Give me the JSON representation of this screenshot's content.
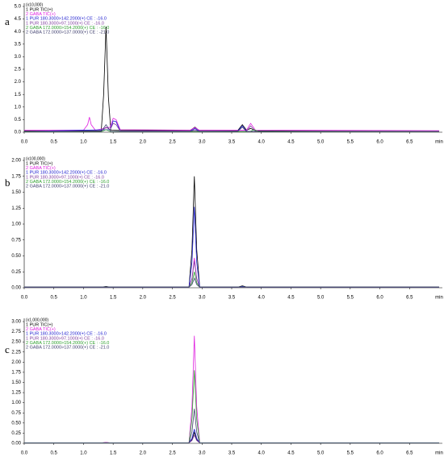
{
  "chart_data": [
    {
      "type": "line",
      "panel_label": "a",
      "scale_label": "(x10,000)",
      "x_label": "min",
      "xlim": [
        0,
        7
      ],
      "ylim": [
        0,
        5
      ],
      "xticks": [
        {
          "value": 0,
          "label": "0.0"
        },
        {
          "value": 0.5,
          "label": "0.5"
        },
        {
          "value": 1,
          "label": "1.0"
        },
        {
          "value": 1.5,
          "label": "1.5"
        },
        {
          "value": 2,
          "label": "2.0"
        },
        {
          "value": 2.5,
          "label": "2.5"
        },
        {
          "value": 3,
          "label": "3.0"
        },
        {
          "value": 3.5,
          "label": "3.5"
        },
        {
          "value": 4,
          "label": "4.0"
        },
        {
          "value": 4.5,
          "label": "4.5"
        },
        {
          "value": 5,
          "label": "5.0"
        },
        {
          "value": 5.5,
          "label": "5.5"
        },
        {
          "value": 6,
          "label": "6.0"
        },
        {
          "value": 6.5,
          "label": "6.5"
        }
      ],
      "yticks": [
        {
          "value": 0,
          "label": "0.0"
        },
        {
          "value": 0.5,
          "label": "0.5"
        },
        {
          "value": 1,
          "label": "1.0"
        },
        {
          "value": 1.5,
          "label": "1.5"
        },
        {
          "value": 2,
          "label": "2.0"
        },
        {
          "value": 2.5,
          "label": "2.5"
        },
        {
          "value": 3,
          "label": "3.0"
        },
        {
          "value": 3.5,
          "label": "3.5"
        },
        {
          "value": 4,
          "label": "4.0"
        },
        {
          "value": 4.5,
          "label": "4.5"
        },
        {
          "value": 5,
          "label": "5.0"
        }
      ],
      "series": [
        {
          "name": "1 PUR TIC(+)",
          "color": "#000000",
          "x": [
            0,
            0.9,
            1.0,
            1.3,
            1.34,
            1.38,
            1.42,
            1.46,
            1.6,
            2.8,
            2.88,
            2.95,
            3.6,
            3.68,
            3.75,
            3.82,
            3.9,
            4.1,
            7
          ],
          "values": [
            0.05,
            0.06,
            0.05,
            0.06,
            1.5,
            4.2,
            1.4,
            0.08,
            0.07,
            0.07,
            0.2,
            0.07,
            0.06,
            0.3,
            0.08,
            0.15,
            0.06,
            0.05,
            0.04
          ]
        },
        {
          "name": "2 GABA TIC(+)",
          "color": "#e020e0",
          "x": [
            0,
            1.0,
            1.07,
            1.1,
            1.13,
            1.2,
            1.45,
            1.5,
            1.55,
            1.62,
            2.8,
            2.88,
            2.95,
            3.75,
            3.82,
            3.9,
            7
          ],
          "values": [
            0.08,
            0.08,
            0.3,
            0.6,
            0.3,
            0.08,
            0.2,
            0.55,
            0.5,
            0.1,
            0.08,
            0.18,
            0.08,
            0.08,
            0.35,
            0.08,
            0.06
          ]
        },
        {
          "name": "1 PUR 180.3000>142.2000(+) CE : -16.0",
          "color": "#2020d0",
          "x": [
            0,
            1.45,
            1.5,
            1.55,
            1.62,
            2.8,
            2.88,
            2.95,
            3.6,
            3.68,
            3.75,
            7
          ],
          "values": [
            0.03,
            0.1,
            0.45,
            0.42,
            0.05,
            0.04,
            0.15,
            0.04,
            0.04,
            0.25,
            0.04,
            0.03
          ]
        },
        {
          "name": "1 PUR 180.3000>97.1000(+) CE : -16.0",
          "color": "#8040a0",
          "x": [
            0,
            1.3,
            1.38,
            1.45,
            1.5,
            1.55,
            1.62,
            3.75,
            3.82,
            3.9,
            7
          ],
          "values": [
            0.04,
            0.04,
            0.2,
            0.1,
            0.35,
            0.3,
            0.05,
            0.04,
            0.25,
            0.04,
            0.03
          ]
        },
        {
          "name": "2 GABA 172.0000>154.2000(+) CE : -16.0",
          "color": "#30a030",
          "x": [
            0,
            1.3,
            1.38,
            1.46,
            3.8,
            3.88,
            3.96,
            7
          ],
          "values": [
            0.02,
            0.02,
            0.1,
            0.02,
            0.02,
            0.1,
            0.02,
            0.02
          ]
        },
        {
          "name": "2 GABA 172.0000>137.0000(+) CE : -21.0",
          "color": "#404070",
          "x": [
            0,
            1.3,
            1.38,
            1.46,
            2.8,
            2.88,
            2.95,
            3.6,
            3.68,
            3.75,
            7
          ],
          "values": [
            0.03,
            0.03,
            0.3,
            0.03,
            0.03,
            0.1,
            0.03,
            0.03,
            0.2,
            0.03,
            0.03
          ]
        }
      ]
    },
    {
      "type": "line",
      "panel_label": "b",
      "scale_label": "(x100,000)",
      "x_label": "min",
      "xlim": [
        0,
        7
      ],
      "ylim": [
        0,
        2
      ],
      "xticks": [
        {
          "value": 0,
          "label": "0.0"
        },
        {
          "value": 0.5,
          "label": "0.5"
        },
        {
          "value": 1,
          "label": "1.0"
        },
        {
          "value": 1.5,
          "label": "1.5"
        },
        {
          "value": 2,
          "label": "2.0"
        },
        {
          "value": 2.5,
          "label": "2.5"
        },
        {
          "value": 3,
          "label": "3.0"
        },
        {
          "value": 3.5,
          "label": "3.5"
        },
        {
          "value": 4,
          "label": "4.0"
        },
        {
          "value": 4.5,
          "label": "4.5"
        },
        {
          "value": 5,
          "label": "5.0"
        },
        {
          "value": 5.5,
          "label": "5.5"
        },
        {
          "value": 6,
          "label": "6.0"
        },
        {
          "value": 6.5,
          "label": "6.5"
        }
      ],
      "yticks": [
        {
          "value": 0,
          "label": "0.00"
        },
        {
          "value": 0.25,
          "label": "0.25"
        },
        {
          "value": 0.5,
          "label": "0.50"
        },
        {
          "value": 0.75,
          "label": "0.75"
        },
        {
          "value": 1,
          "label": "1.00"
        },
        {
          "value": 1.25,
          "label": "1.25"
        },
        {
          "value": 1.5,
          "label": "1.50"
        },
        {
          "value": 1.75,
          "label": "1.75"
        },
        {
          "value": 2,
          "label": "2.00"
        }
      ],
      "x": [
        0,
        1.3,
        1.38,
        1.46,
        2.78,
        2.83,
        2.87,
        2.91,
        2.96,
        3.6,
        3.68,
        3.76,
        7
      ],
      "series": [
        {
          "name": "1 PUR TIC(+)",
          "color": "#000000",
          "values": [
            0.01,
            0.01,
            0.02,
            0.01,
            0.01,
            0.6,
            1.75,
            0.6,
            0.01,
            0.01,
            0.03,
            0.01,
            0.01
          ]
        },
        {
          "name": "2 GABA TIC(+)",
          "color": "#e020e0",
          "values": [
            0.01,
            0.01,
            0.01,
            0.01,
            0.01,
            0.15,
            0.47,
            0.15,
            0.01,
            0.01,
            0.01,
            0.01,
            0.01
          ]
        },
        {
          "name": "1 PUR 180.3000>142.2000(+) CE : -16.0",
          "color": "#2020d0",
          "values": [
            0.01,
            0.01,
            0.01,
            0.01,
            0.01,
            0.4,
            1.27,
            0.4,
            0.01,
            0.01,
            0.02,
            0.01,
            0.01
          ]
        },
        {
          "name": "1 PUR 180.3000>97.1000(+) CE : -16.0",
          "color": "#8040a0",
          "values": [
            0.01,
            0.01,
            0.01,
            0.01,
            0.01,
            0.14,
            0.42,
            0.14,
            0.01,
            0.01,
            0.01,
            0.01,
            0.01
          ]
        },
        {
          "name": "2 GABA 172.0000>154.2000(+) CE : -16.0",
          "color": "#30a030",
          "values": [
            0.01,
            0.01,
            0.01,
            0.01,
            0.01,
            0.08,
            0.25,
            0.08,
            0.01,
            0.01,
            0.01,
            0.01,
            0.01
          ]
        },
        {
          "name": "2 GABA 172.0000>137.0000(+) CE : -21.0",
          "color": "#404070",
          "values": [
            0.01,
            0.01,
            0.01,
            0.01,
            0.01,
            0.05,
            0.15,
            0.05,
            0.01,
            0.01,
            0.01,
            0.01,
            0.01
          ]
        }
      ]
    },
    {
      "type": "line",
      "panel_label": "c",
      "scale_label": "(x1,000,000)",
      "x_label": "min",
      "xlim": [
        0,
        7
      ],
      "ylim": [
        0,
        3
      ],
      "xticks": [
        {
          "value": 0,
          "label": "0.0"
        },
        {
          "value": 0.5,
          "label": "0.5"
        },
        {
          "value": 1,
          "label": "1.0"
        },
        {
          "value": 1.5,
          "label": "1.5"
        },
        {
          "value": 2,
          "label": "2.0"
        },
        {
          "value": 2.5,
          "label": "2.5"
        },
        {
          "value": 3,
          "label": "3.0"
        },
        {
          "value": 3.5,
          "label": "3.5"
        },
        {
          "value": 4,
          "label": "4.0"
        },
        {
          "value": 4.5,
          "label": "4.5"
        },
        {
          "value": 5,
          "label": "5.0"
        },
        {
          "value": 5.5,
          "label": "5.5"
        },
        {
          "value": 6,
          "label": "6.0"
        },
        {
          "value": 6.5,
          "label": "6.5"
        }
      ],
      "yticks": [
        {
          "value": 0,
          "label": "0.00"
        },
        {
          "value": 0.25,
          "label": "0.25"
        },
        {
          "value": 0.5,
          "label": "0.50"
        },
        {
          "value": 0.75,
          "label": "0.75"
        },
        {
          "value": 1,
          "label": "1.00"
        },
        {
          "value": 1.25,
          "label": "1.25"
        },
        {
          "value": 1.5,
          "label": "1.50"
        },
        {
          "value": 1.75,
          "label": "1.75"
        },
        {
          "value": 2,
          "label": "2.00"
        },
        {
          "value": 2.25,
          "label": "2.25"
        },
        {
          "value": 2.5,
          "label": "2.50"
        },
        {
          "value": 2.75,
          "label": "2.75"
        },
        {
          "value": 3,
          "label": "3.00"
        }
      ],
      "x": [
        0,
        1.3,
        1.38,
        1.46,
        2.78,
        2.83,
        2.87,
        2.91,
        2.96,
        7
      ],
      "series": [
        {
          "name": "1 PUR TIC(+)",
          "color": "#000000",
          "values": [
            0.01,
            0.01,
            0.02,
            0.01,
            0.01,
            0.09,
            0.27,
            0.09,
            0.01,
            0.01
          ]
        },
        {
          "name": "2 GABA TIC(+)",
          "color": "#e020e0",
          "values": [
            0.01,
            0.01,
            0.02,
            0.01,
            0.01,
            0.9,
            2.65,
            0.9,
            0.01,
            0.01
          ]
        },
        {
          "name": "1 PUR 180.3000>142.2000(+) CE : -16.0",
          "color": "#2020d0",
          "values": [
            0.01,
            0.01,
            0.01,
            0.01,
            0.01,
            0.12,
            0.35,
            0.12,
            0.01,
            0.01
          ]
        },
        {
          "name": "1 PUR 180.3000>97.1000(+) CE : -16.0",
          "color": "#8040a0",
          "values": [
            0.01,
            0.01,
            0.01,
            0.01,
            0.01,
            0.07,
            0.2,
            0.07,
            0.01,
            0.01
          ]
        },
        {
          "name": "2 GABA 172.0000>154.2000(+) CE : -16.0",
          "color": "#30a030",
          "values": [
            0.01,
            0.01,
            0.01,
            0.01,
            0.01,
            0.6,
            1.8,
            0.6,
            0.01,
            0.01
          ]
        },
        {
          "name": "2 GABA 172.0000>137.0000(+) CE : -21.0",
          "color": "#404070",
          "values": [
            0.01,
            0.01,
            0.01,
            0.01,
            0.01,
            0.28,
            0.85,
            0.28,
            0.01,
            0.01
          ]
        }
      ]
    }
  ]
}
